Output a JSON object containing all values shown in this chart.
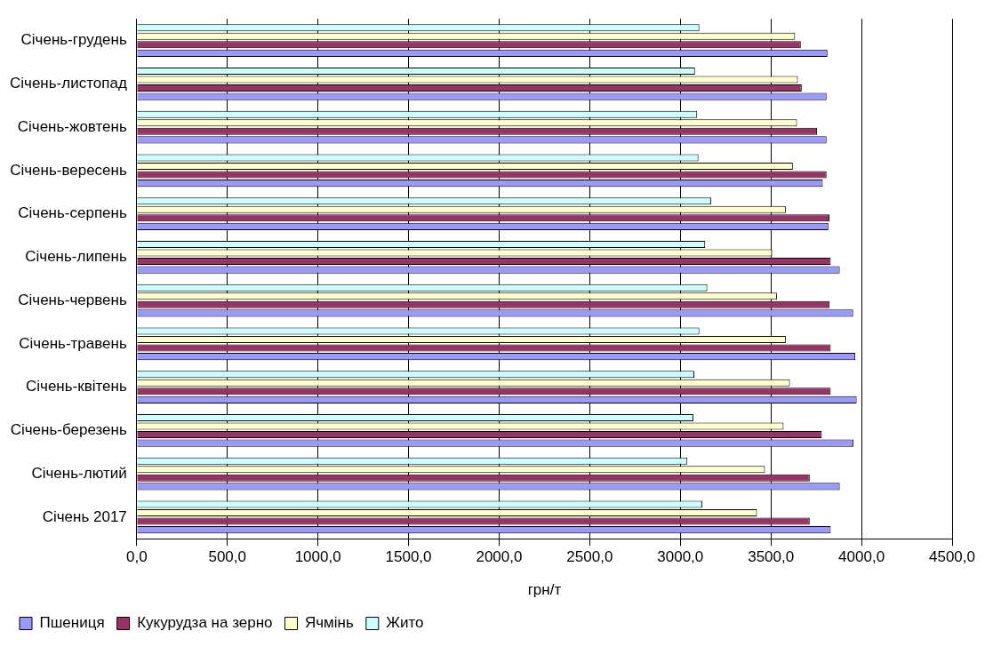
{
  "chart_data": {
    "type": "bar",
    "orientation": "horizontal",
    "xlabel": "грн/т",
    "categories": [
      "Січень-грудень",
      "Січень-листопад",
      "Січень-жовтень",
      "Січень-вересень",
      "Січень-серпень",
      "Січень-липень",
      "Січень-червень",
      "Січень-травень",
      "Січень-квітень",
      "Січень-березень",
      "Січень-лютий",
      "Січень 2017"
    ],
    "series": [
      {
        "name": "Пшениця",
        "color": "#9999ff",
        "values": [
          3812,
          3807,
          3807,
          3786,
          3817,
          3880,
          3954,
          3966,
          3973,
          3956,
          3880,
          3830
        ]
      },
      {
        "name": "Кукурудза на зерно",
        "color": "#993366",
        "values": [
          3665,
          3670,
          3754,
          3807,
          3823,
          3830,
          3824,
          3830,
          3830,
          3781,
          3714,
          3714
        ]
      },
      {
        "name": "Ячмінь",
        "color": "#ffffcc",
        "values": [
          3633,
          3649,
          3644,
          3621,
          3582,
          3507,
          3533,
          3582,
          3605,
          3570,
          3467,
          3423
        ]
      },
      {
        "name": "Жито",
        "color": "#ccffff",
        "values": [
          3105,
          3081,
          3093,
          3100,
          3170,
          3137,
          3149,
          3105,
          3077,
          3072,
          3039,
          3121
        ]
      }
    ],
    "xlim": [
      0,
      4500
    ],
    "xticks": [
      {
        "value": 0,
        "label": "0,0"
      },
      {
        "value": 500,
        "label": "500,0"
      },
      {
        "value": 1000,
        "label": "1000,0"
      },
      {
        "value": 1500,
        "label": "1500,0"
      },
      {
        "value": 2000,
        "label": "2000,0"
      },
      {
        "value": 2500,
        "label": "2500,0"
      },
      {
        "value": 3000,
        "label": "3000,0"
      },
      {
        "value": 3500,
        "label": "3500,0"
      },
      {
        "value": 4000,
        "label": "4000,0"
      },
      {
        "value": 4500,
        "label": "4500,0"
      }
    ],
    "grid": "x",
    "legend": "bottom left"
  }
}
